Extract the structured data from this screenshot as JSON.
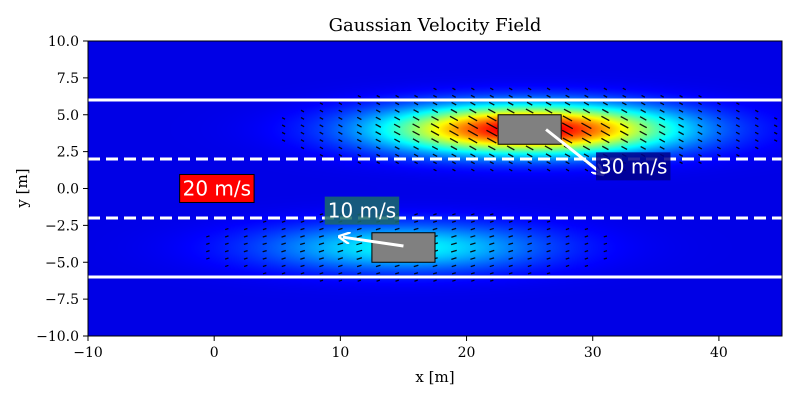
{
  "chart_data": {
    "type": "heatmap",
    "title": "Gaussian Velocity Field",
    "xlabel": "x [m]",
    "ylabel": "y [m]",
    "xlim": [
      -10,
      45
    ],
    "ylim": [
      -10,
      10
    ],
    "xticks": [
      -10,
      0,
      10,
      20,
      30,
      40
    ],
    "yticks": [
      -10.0,
      -7.5,
      -5.0,
      -2.5,
      0.0,
      2.5,
      5.0,
      7.5,
      10.0
    ],
    "xtick_labels": [
      "−10",
      "0",
      "10",
      "20",
      "30",
      "40"
    ],
    "ytick_labels": [
      "−10.0",
      "−7.5",
      "−5.0",
      "−2.5",
      "0.0",
      "2.5",
      "5.0",
      "7.5",
      "10.0"
    ],
    "colormap": "jet",
    "field_sources": [
      {
        "x": 25,
        "y": 4,
        "peak_velocity": 30
      },
      {
        "x": 15,
        "y": -4,
        "peak_velocity": 10
      }
    ],
    "road_boundaries": [
      {
        "y": 6,
        "style": "solid",
        "color": "#ffffff"
      },
      {
        "y": 2,
        "style": "dashed",
        "color": "#ffffff"
      },
      {
        "y": -2,
        "style": "dashed",
        "color": "#ffffff"
      },
      {
        "y": -6,
        "style": "solid",
        "color": "#ffffff"
      }
    ],
    "vehicles": [
      {
        "x_min": 22.5,
        "x_max": 27.5,
        "y_min": 3,
        "y_max": 5,
        "color": "#808080"
      },
      {
        "x_min": 12.5,
        "x_max": 17.5,
        "y_min": -5,
        "y_max": -3,
        "color": "#808080"
      }
    ],
    "velocity_arrows": [
      {
        "from": [
          26.3,
          4.0
        ],
        "to": [
          30.6,
          1.1
        ],
        "color": "#ffffff"
      },
      {
        "from": [
          15.0,
          -3.9
        ],
        "to": [
          10.2,
          -3.3
        ],
        "color": "#ffffff"
      }
    ],
    "annotations": [
      {
        "text": "30 m/s",
        "x": 30.5,
        "y": 1.4,
        "bg": "#00008b"
      },
      {
        "text": "20 m/s",
        "x": -2.5,
        "y": -0.1,
        "bg": "#ff0000"
      },
      {
        "text": "10 m/s",
        "x": 9.0,
        "y": -1.6,
        "bg": "#1a6a6a"
      }
    ]
  }
}
